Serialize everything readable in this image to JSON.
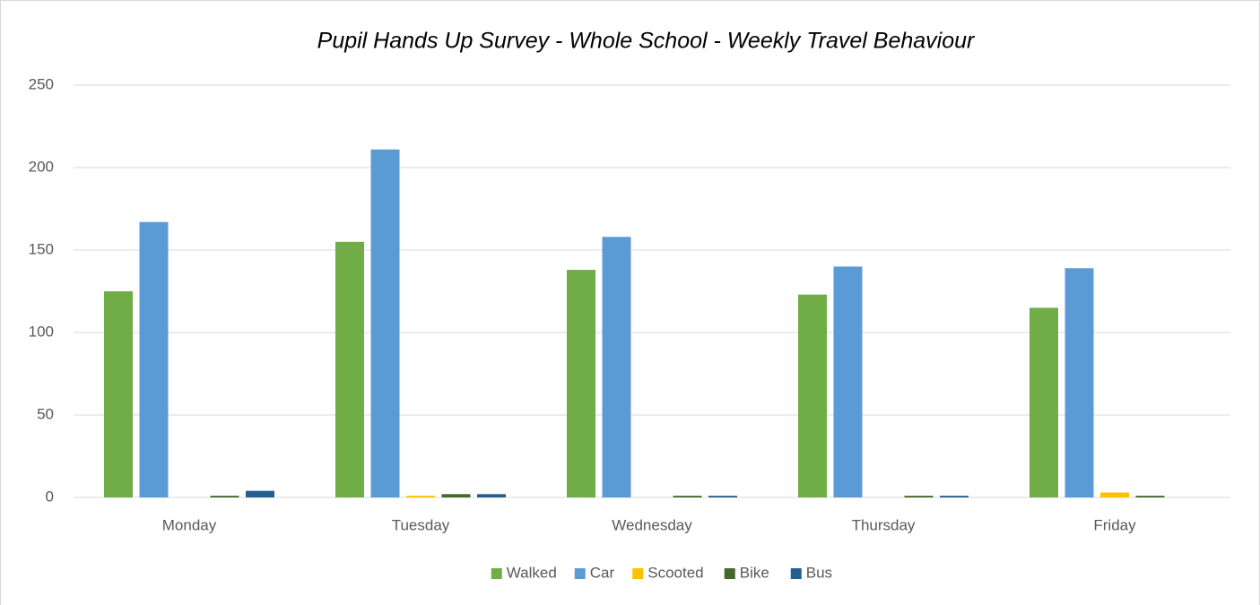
{
  "chart_data": {
    "type": "bar",
    "title": "Pupil Hands Up Survey - Whole School - Weekly Travel Behaviour",
    "categories": [
      "Monday",
      "Tuesday",
      "Wednesday",
      "Thursday",
      "Friday"
    ],
    "series": [
      {
        "name": "Walked",
        "color": "#70ad47",
        "values": [
          125,
          155,
          138,
          123,
          115
        ]
      },
      {
        "name": "Car",
        "color": "#5b9bd5",
        "values": [
          167,
          211,
          158,
          140,
          139
        ]
      },
      {
        "name": "Scooted",
        "color": "#ffc000",
        "values": [
          0,
          1,
          0,
          0,
          3
        ]
      },
      {
        "name": "Bike",
        "color": "#43682b",
        "values": [
          1,
          2,
          1,
          1,
          1
        ]
      },
      {
        "name": "Bus",
        "color": "#255e91",
        "values": [
          4,
          2,
          1,
          1,
          0
        ]
      }
    ],
    "ylim": [
      0,
      250
    ],
    "yticks": [
      0,
      50,
      100,
      150,
      200,
      250
    ],
    "grid": true,
    "legend": "bottom"
  }
}
